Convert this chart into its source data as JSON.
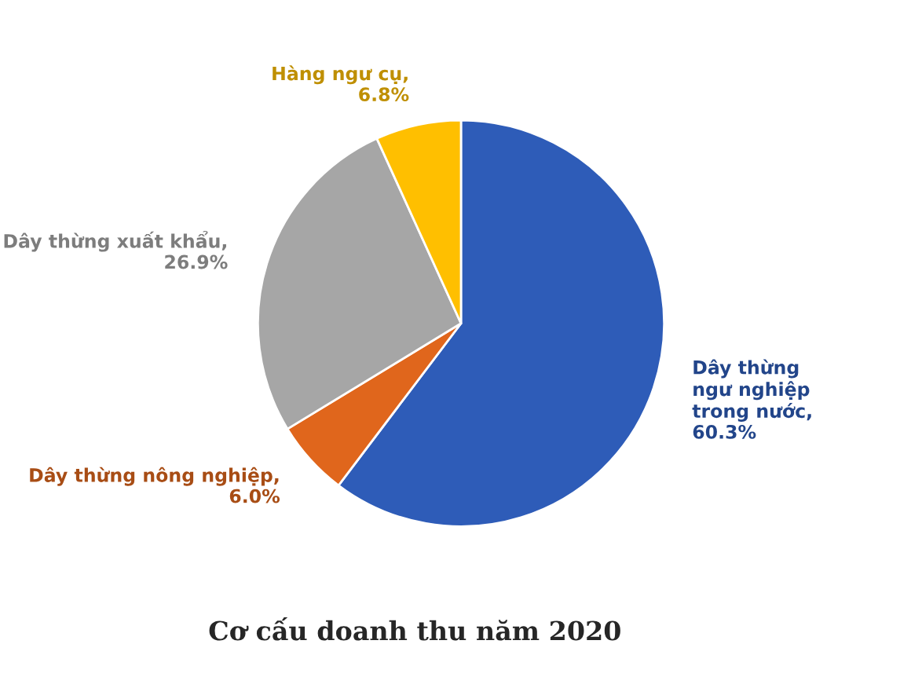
{
  "chart_data": {
    "type": "pie",
    "title": "Cơ cấu doanh thu năm 2020",
    "categories": [
      "Dây thừng ngư nghiệp trong nước",
      "Dây thừng nông nghiệp",
      "Dây thừng xuất khẩu",
      "Hàng ngư cụ"
    ],
    "values": [
      60.3,
      6.0,
      26.9,
      6.8
    ],
    "value_labels": [
      ", 60.3%",
      ", 6.0%",
      ", 26.9%",
      ", 6.8%"
    ],
    "colors": [
      "#2e5cb8",
      "#e0661c",
      "#a6a6a6",
      "#ffbf00"
    ]
  }
}
